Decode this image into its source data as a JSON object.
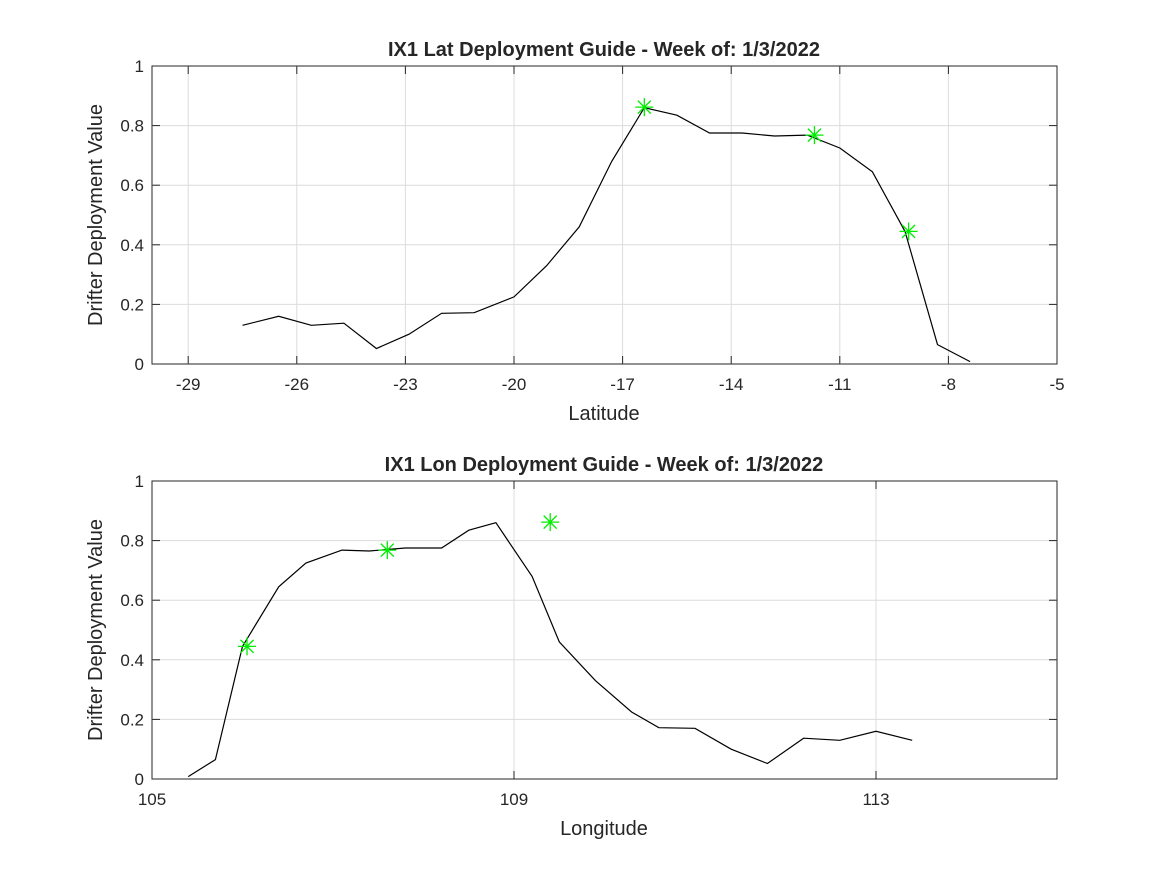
{
  "chart_data": [
    {
      "type": "line",
      "title": "IX1 Lat Deployment Guide - Week of: 1/3/2022",
      "xlabel": "Latitude",
      "ylabel": "Drifter Deployment Value",
      "xlim": [
        -30,
        -5
      ],
      "ylim": [
        0,
        1
      ],
      "xticks": [
        -29,
        -26,
        -23,
        -20,
        -17,
        -14,
        -11,
        -8,
        -5
      ],
      "xtick_labels": [
        "-29",
        "-26",
        "-23",
        "-20",
        "-17",
        "-14",
        "-11",
        "-8",
        "-5"
      ],
      "yticks": [
        0,
        0.2,
        0.4,
        0.6,
        0.8,
        1
      ],
      "ytick_labels": [
        "0",
        "0.2",
        "0.4",
        "0.6",
        "0.8",
        "1"
      ],
      "grid": true,
      "series": [
        {
          "color": "#000000",
          "x": [
            -27.5,
            -26.5,
            -25.6,
            -24.7,
            -23.8,
            -22.9,
            -22.0,
            -21.1,
            -20.0,
            -19.1,
            -18.2,
            -17.3,
            -16.4,
            -15.5,
            -14.6,
            -13.7,
            -12.8,
            -11.9,
            -11.0,
            -10.1,
            -9.2,
            -8.3,
            -7.4
          ],
          "y": [
            0.13,
            0.16,
            0.13,
            0.137,
            0.052,
            0.1,
            0.17,
            0.172,
            0.225,
            0.33,
            0.46,
            0.68,
            0.86,
            0.835,
            0.775,
            0.775,
            0.765,
            0.768,
            0.725,
            0.645,
            0.445,
            0.065,
            0.008
          ]
        }
      ],
      "markers": {
        "color": "#00ee00",
        "symbol": "asterisk",
        "x": [
          -16.4,
          -11.7,
          -9.1
        ],
        "y": [
          0.862,
          0.768,
          0.445
        ]
      }
    },
    {
      "type": "line",
      "title": "IX1 Lon Deployment Guide - Week of: 1/3/2022",
      "xlabel": "Longitude",
      "ylabel": "Drifter Deployment Value",
      "xlim": [
        105,
        115
      ],
      "ylim": [
        0,
        1
      ],
      "xticks": [
        105,
        109,
        113
      ],
      "xtick_labels": [
        "105",
        "109",
        "113"
      ],
      "yticks": [
        0,
        0.2,
        0.4,
        0.6,
        0.8,
        1
      ],
      "ytick_labels": [
        "0",
        "0.2",
        "0.4",
        "0.6",
        "0.8",
        "1"
      ],
      "grid": true,
      "series": [
        {
          "color": "#000000",
          "x": [
            105.4,
            105.7,
            106.0,
            106.4,
            106.7,
            107.1,
            107.4,
            107.8,
            108.2,
            108.5,
            108.8,
            109.2,
            109.5,
            109.9,
            110.3,
            110.6,
            111.0,
            111.4,
            111.8,
            112.2,
            112.6,
            113.0,
            113.4
          ],
          "y": [
            0.008,
            0.065,
            0.445,
            0.645,
            0.725,
            0.768,
            0.765,
            0.775,
            0.775,
            0.835,
            0.86,
            0.68,
            0.46,
            0.33,
            0.225,
            0.172,
            0.17,
            0.1,
            0.052,
            0.137,
            0.13,
            0.16,
            0.13
          ]
        }
      ],
      "markers": {
        "color": "#00ee00",
        "symbol": "asterisk",
        "x": [
          106.05,
          107.6,
          109.4
        ],
        "y": [
          0.445,
          0.768,
          0.862
        ]
      }
    }
  ]
}
